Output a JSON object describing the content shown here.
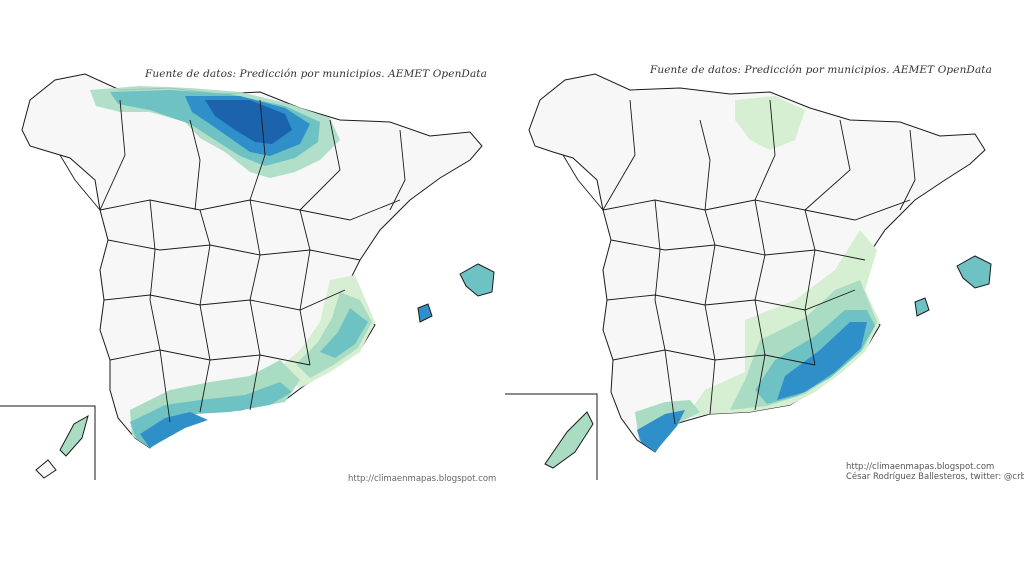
{
  "maps": {
    "left": {
      "source": "Fuente de datos: Predicción por municipios. AEMET OpenData",
      "url": "http://climaenmapas.blogspot.com",
      "regions": [
        "Cantabrian coast",
        "Mediterranean coast",
        "Strait of Gibraltar",
        "Balearic Islands",
        "Canary Islands inset"
      ]
    },
    "right": {
      "source": "Fuente de datos: Predicción por municipios. AEMET OpenData",
      "url": "http://climaenmapas.blogspot.com",
      "author": "César Rodríguez Ballesteros, twitter: @crb",
      "regions": [
        "Southeast Mediterranean coast",
        "Strait of Gibraltar",
        "Balearic Islands",
        "Canary Islands inset"
      ]
    }
  },
  "colors": {
    "land": "#f7f7f7",
    "border": "#1a1a1a",
    "level_1": "#d6efd2",
    "level_2": "#a9dcc3",
    "level_3": "#6fc2c4",
    "level_4": "#2f8fc9",
    "level_5": "#1c63ad"
  }
}
